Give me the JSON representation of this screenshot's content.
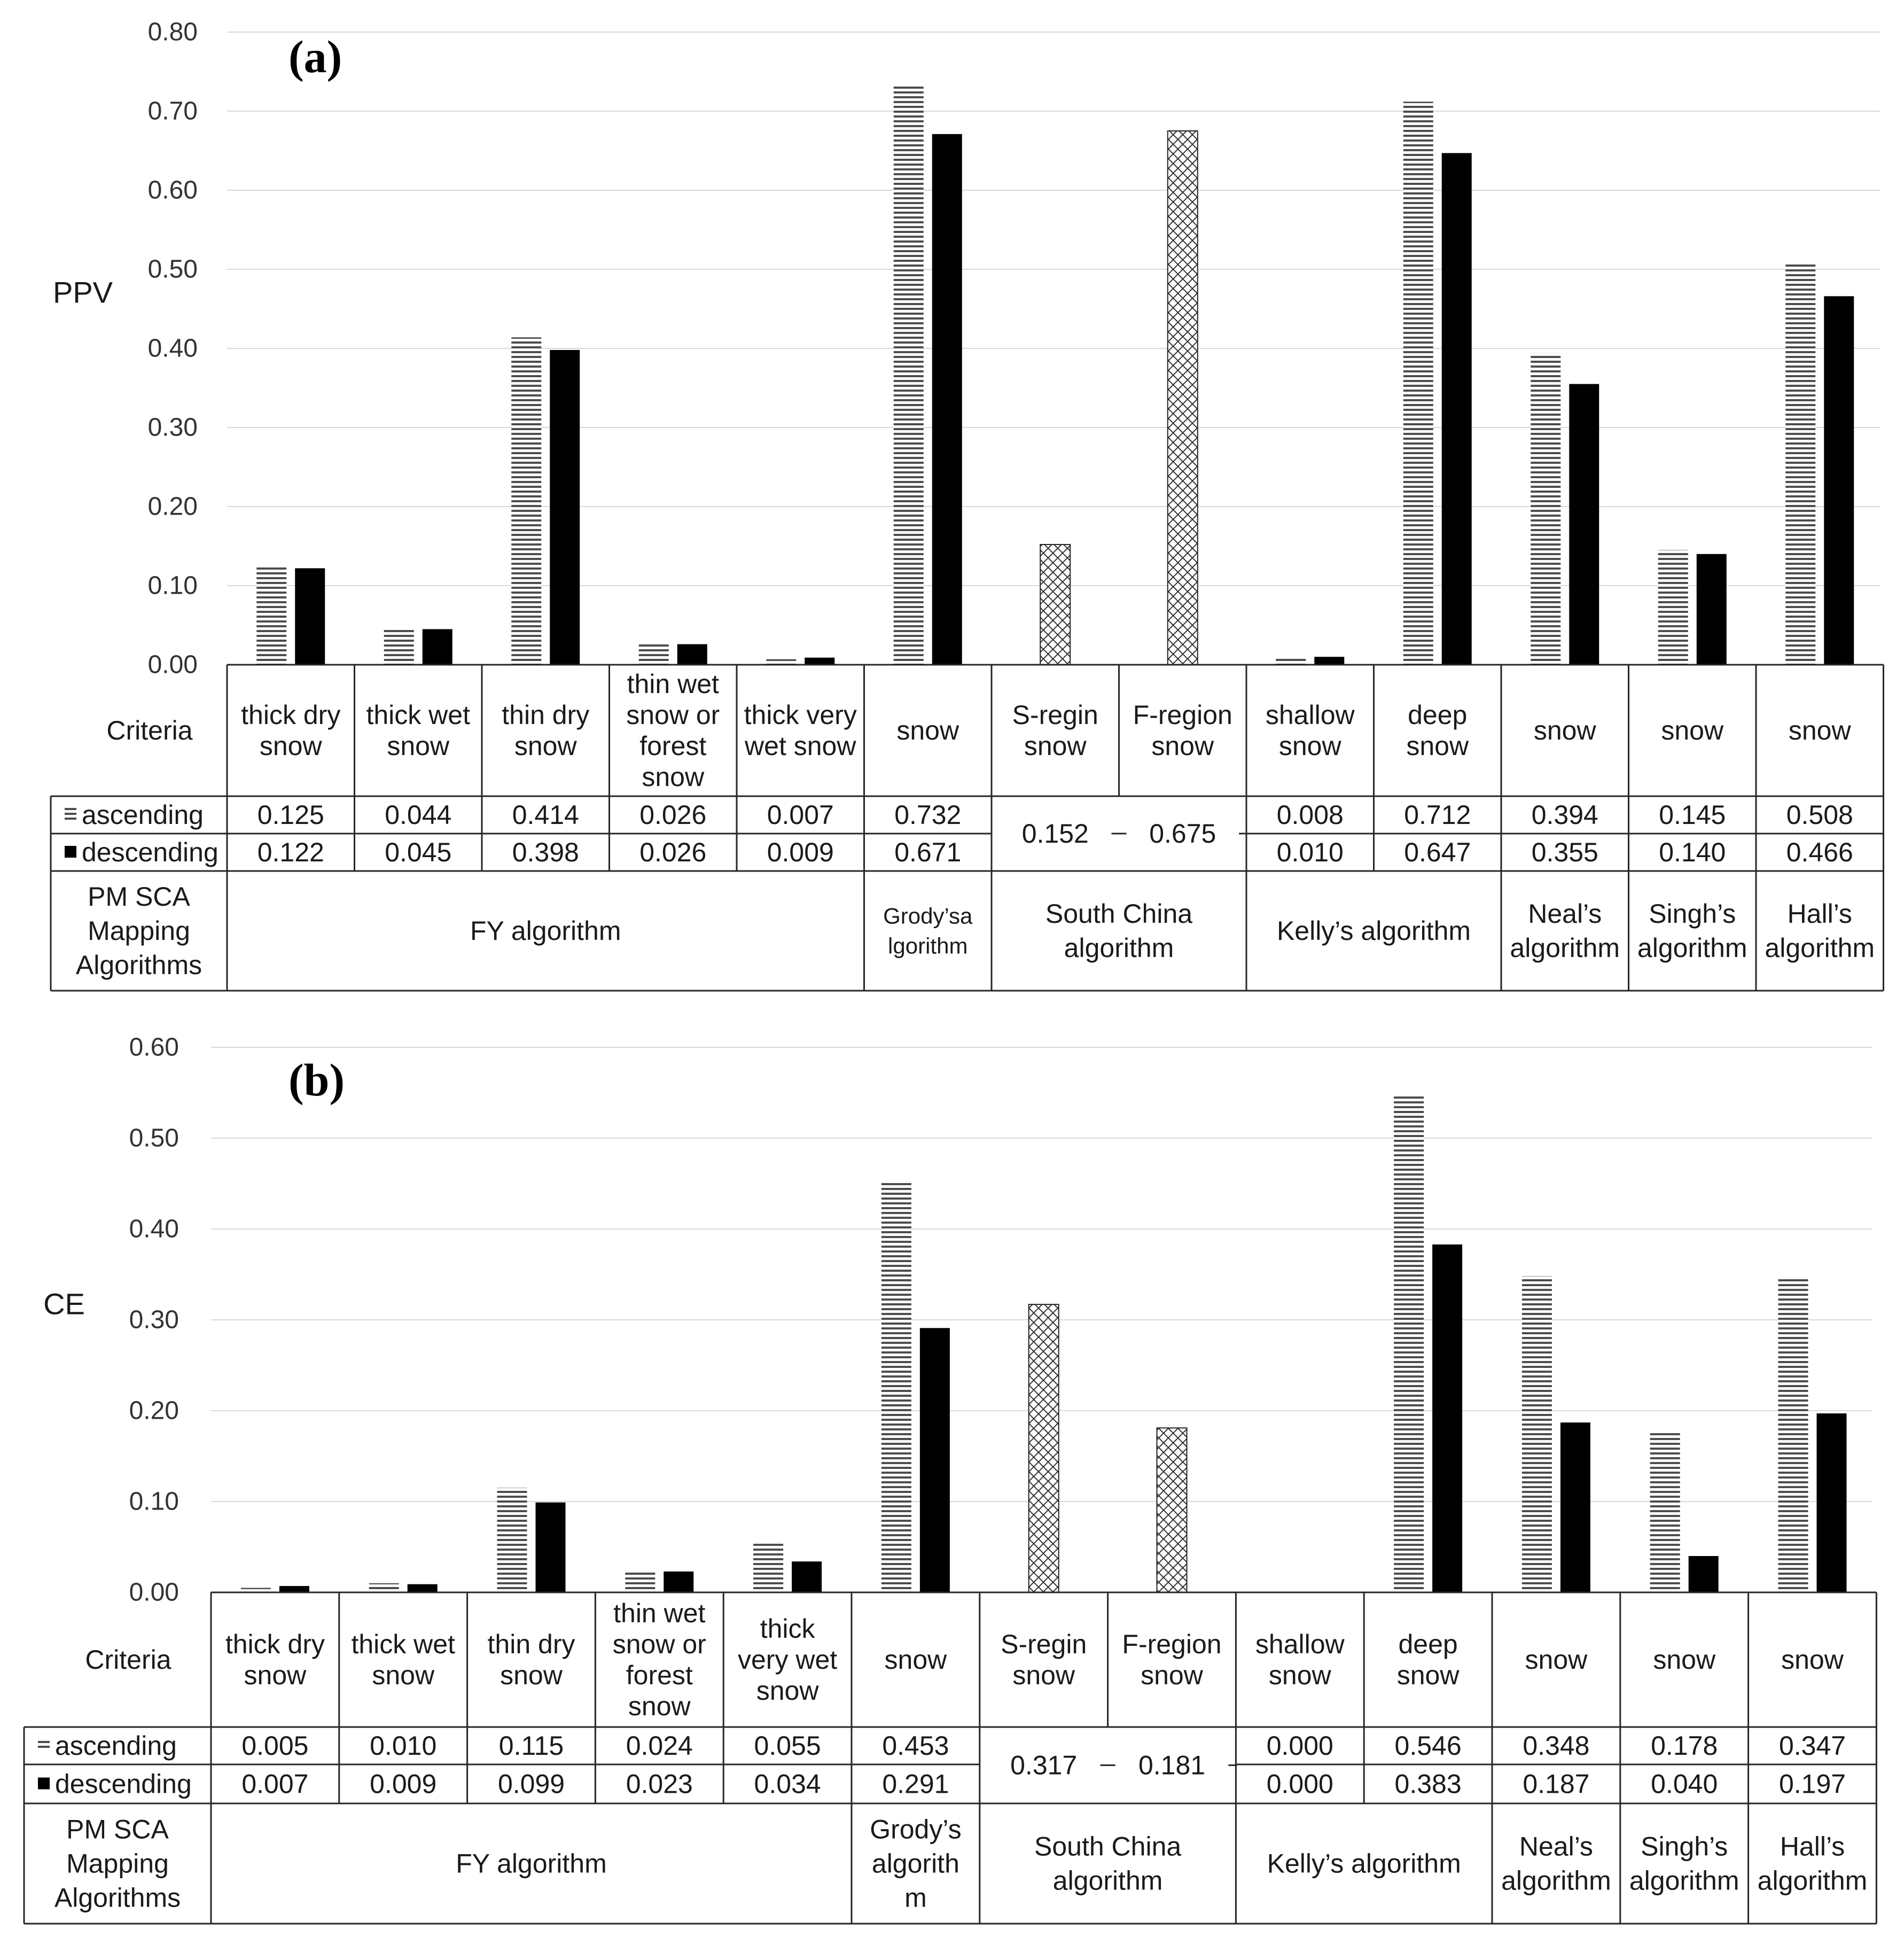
{
  "legend": {
    "ascending": "ascending",
    "descending": "descending"
  },
  "colors": {
    "descending": "#000000",
    "grid": "#d9d9d9",
    "border": "#262626"
  },
  "charts": [
    {
      "chart_data": {
        "type": "bar",
        "tag": "(a)",
        "ylabel": "PPV",
        "ylim": [
          0,
          0.8
        ],
        "yticks": [
          "0.00",
          "0.10",
          "0.20",
          "0.30",
          "0.40",
          "0.50",
          "0.60",
          "0.70",
          "0.80"
        ],
        "criteria_header": "Criteria",
        "algo_header": [
          "PM SCA",
          "Mapping",
          "Algorithms"
        ],
        "columns": [
          {
            "criteria": [
              "thick dry",
              "snow"
            ],
            "asc": 0.125,
            "desc": 0.122,
            "asc_label": "0.125",
            "desc_label": "0.122"
          },
          {
            "criteria": [
              "thick wet",
              "snow"
            ],
            "asc": 0.044,
            "desc": 0.045,
            "asc_label": "0.044",
            "desc_label": "0.045"
          },
          {
            "criteria": [
              "thin dry",
              "snow"
            ],
            "asc": 0.414,
            "desc": 0.398,
            "asc_label": "0.414",
            "desc_label": "0.398"
          },
          {
            "criteria": [
              "thin wet",
              "snow or",
              "forest",
              "snow"
            ],
            "asc": 0.026,
            "desc": 0.026,
            "asc_label": "0.026",
            "desc_label": "0.026"
          },
          {
            "criteria": [
              "thick very",
              "wet snow"
            ],
            "asc": 0.007,
            "desc": 0.009,
            "asc_label": "0.007",
            "desc_label": "0.009"
          },
          {
            "criteria": [
              "snow"
            ],
            "asc": 0.732,
            "desc": 0.671,
            "asc_label": "0.732",
            "desc_label": "0.671"
          },
          {
            "criteria": [
              "S-regin",
              "snow"
            ],
            "single": 0.152,
            "single_label": "0.152"
          },
          {
            "criteria": [
              "F-region",
              "snow"
            ],
            "single": 0.675,
            "single_label": "0.675"
          },
          {
            "criteria": [
              "shallow",
              "snow"
            ],
            "asc": 0.008,
            "desc": 0.01,
            "asc_label": "0.008",
            "desc_label": "0.010"
          },
          {
            "criteria": [
              "deep",
              "snow"
            ],
            "asc": 0.712,
            "desc": 0.647,
            "asc_label": "0.712",
            "desc_label": "0.647"
          },
          {
            "criteria": [
              "snow"
            ],
            "asc": 0.394,
            "desc": 0.355,
            "asc_label": "0.394",
            "desc_label": "0.355"
          },
          {
            "criteria": [
              "snow"
            ],
            "asc": 0.145,
            "desc": 0.14,
            "asc_label": "0.145",
            "desc_label": "0.140"
          },
          {
            "criteria": [
              "snow"
            ],
            "asc": 0.508,
            "desc": 0.466,
            "asc_label": "0.508",
            "desc_label": "0.466"
          }
        ],
        "groups": [
          {
            "label": [
              "FY algorithm"
            ],
            "from": 0,
            "to": 4
          },
          {
            "label": [
              "Grody’sa",
              "lgorithm"
            ],
            "from": 5,
            "to": 5,
            "small": true
          },
          {
            "label": [
              "South China",
              "algorithm"
            ],
            "from": 6,
            "to": 7
          },
          {
            "label": [
              "Kelly’s algorithm"
            ],
            "from": 8,
            "to": 9
          },
          {
            "label": [
              "Neal’s",
              "algorithm"
            ],
            "from": 10,
            "to": 10
          },
          {
            "label": [
              "Singh’s",
              "algorithm"
            ],
            "from": 11,
            "to": 11
          },
          {
            "label": [
              "Hall’s",
              "algorithm"
            ],
            "from": 12,
            "to": 12
          }
        ]
      }
    },
    {
      "chart_data": {
        "type": "bar",
        "tag": "(b)",
        "ylabel": "CE",
        "ylim": [
          0,
          0.6
        ],
        "yticks": [
          "0.00",
          "0.10",
          "0.20",
          "0.30",
          "0.40",
          "0.50",
          "0.60"
        ],
        "criteria_header": "Criteria",
        "algo_header": [
          "PM SCA",
          "Mapping",
          "Algorithms"
        ],
        "columns": [
          {
            "criteria": [
              "thick dry",
              "snow"
            ],
            "asc": 0.005,
            "desc": 0.007,
            "asc_label": "0.005",
            "desc_label": "0.007"
          },
          {
            "criteria": [
              "thick wet",
              "snow"
            ],
            "asc": 0.01,
            "desc": 0.009,
            "asc_label": "0.010",
            "desc_label": "0.009"
          },
          {
            "criteria": [
              "thin dry",
              "snow"
            ],
            "asc": 0.115,
            "desc": 0.099,
            "asc_label": "0.115",
            "desc_label": "0.099"
          },
          {
            "criteria": [
              "thin wet",
              "snow or",
              "forest",
              "snow"
            ],
            "asc": 0.024,
            "desc": 0.023,
            "asc_label": "0.024",
            "desc_label": "0.023"
          },
          {
            "criteria": [
              "thick",
              "very wet",
              "snow"
            ],
            "asc": 0.055,
            "desc": 0.034,
            "asc_label": "0.055",
            "desc_label": "0.034"
          },
          {
            "criteria": [
              "snow"
            ],
            "asc": 0.453,
            "desc": 0.291,
            "asc_label": "0.453",
            "desc_label": "0.291"
          },
          {
            "criteria": [
              "S-regin",
              "snow"
            ],
            "single": 0.317,
            "single_label": "0.317"
          },
          {
            "criteria": [
              "F-region",
              "snow"
            ],
            "single": 0.181,
            "single_label": "0.181"
          },
          {
            "criteria": [
              "shallow",
              "snow"
            ],
            "asc": 0.0,
            "desc": 0.0,
            "asc_label": "0.000",
            "desc_label": "0.000"
          },
          {
            "criteria": [
              "deep",
              "snow"
            ],
            "asc": 0.546,
            "desc": 0.383,
            "asc_label": "0.546",
            "desc_label": "0.383"
          },
          {
            "criteria": [
              "snow"
            ],
            "asc": 0.348,
            "desc": 0.187,
            "asc_label": "0.348",
            "desc_label": "0.187"
          },
          {
            "criteria": [
              "snow"
            ],
            "asc": 0.178,
            "desc": 0.04,
            "asc_label": "0.178",
            "desc_label": "0.040"
          },
          {
            "criteria": [
              "snow"
            ],
            "asc": 0.347,
            "desc": 0.197,
            "asc_label": "0.347",
            "desc_label": "0.197"
          }
        ],
        "groups": [
          {
            "label": [
              "FY algorithm"
            ],
            "from": 0,
            "to": 4
          },
          {
            "label": [
              "Grody’s",
              "algorith",
              "m"
            ],
            "from": 5,
            "to": 5
          },
          {
            "label": [
              "South China",
              "algorithm"
            ],
            "from": 6,
            "to": 7
          },
          {
            "label": [
              "Kelly’s algorithm"
            ],
            "from": 8,
            "to": 9
          },
          {
            "label": [
              "Neal’s",
              "algorithm"
            ],
            "from": 10,
            "to": 10
          },
          {
            "label": [
              "Singh’s",
              "algorithm"
            ],
            "from": 11,
            "to": 11
          },
          {
            "label": [
              "Hall’s",
              "algorithm"
            ],
            "from": 12,
            "to": 12
          }
        ]
      }
    }
  ]
}
